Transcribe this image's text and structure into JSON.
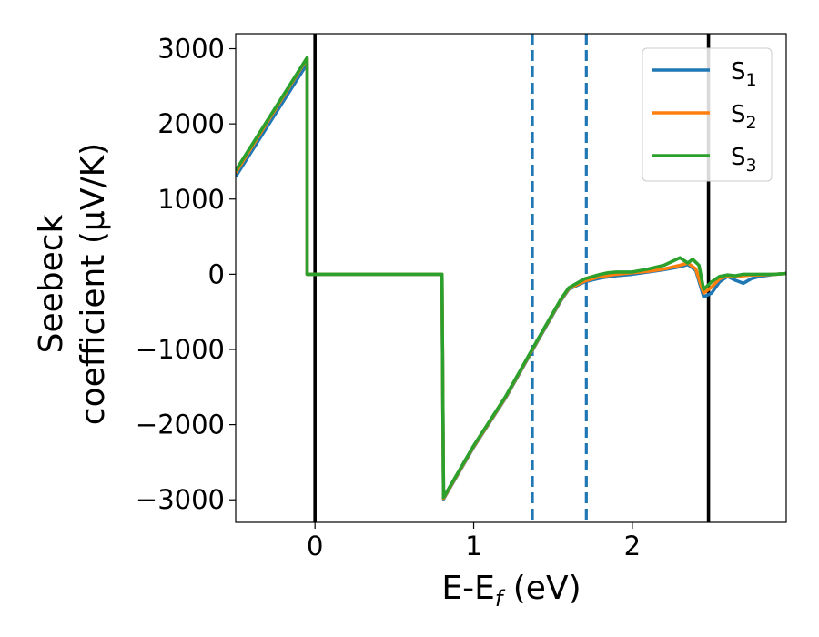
{
  "chart_data": {
    "type": "line",
    "title": "",
    "xlabel": "E-E",
    "xlabel_sub": "f",
    "xlabel_unit": " (eV)",
    "ylabel_line1": "Seebeck",
    "ylabel_line2": "coefficient  (μV/K)",
    "xlim": [
      -0.5,
      2.97
    ],
    "ylim": [
      -3300,
      3200
    ],
    "xticks": [
      0,
      1,
      2
    ],
    "xtick_labels": [
      "0",
      "1",
      "2"
    ],
    "yticks": [
      -3000,
      -2000,
      -1000,
      0,
      1000,
      2000,
      3000
    ],
    "ytick_labels": [
      "−3000",
      "−2000",
      "−1000",
      "0",
      "1000",
      "2000",
      "3000"
    ],
    "grid": false,
    "legend_position": "top-right",
    "vertical_lines": [
      {
        "x": 0.0,
        "style": "solid",
        "color": "#000000"
      },
      {
        "x": 1.37,
        "style": "dashed",
        "color": "#1f77b4"
      },
      {
        "x": 1.71,
        "style": "dashed",
        "color": "#1f77b4"
      },
      {
        "x": 2.48,
        "style": "solid",
        "color": "#000000"
      }
    ],
    "series": [
      {
        "name": "S",
        "sub": "1",
        "color": "#1f77b4",
        "x": [
          -0.5,
          -0.05,
          -0.05,
          0.8,
          0.81,
          1.0,
          1.2,
          1.4,
          1.55,
          1.6,
          1.7,
          1.8,
          1.9,
          2.0,
          2.1,
          2.2,
          2.3,
          2.35,
          2.4,
          2.45,
          2.5,
          2.55,
          2.6,
          2.65,
          2.7,
          2.75,
          2.8,
          2.9,
          2.97
        ],
        "y": [
          1300,
          2800,
          0,
          0,
          -2990,
          -2300,
          -1650,
          -900,
          -350,
          -200,
          -100,
          -50,
          -20,
          0,
          30,
          60,
          100,
          130,
          50,
          -300,
          -250,
          -100,
          -30,
          -80,
          -120,
          -60,
          -30,
          0,
          10
        ]
      },
      {
        "name": "S",
        "sub": "2",
        "color": "#ff7f0e",
        "x": [
          -0.5,
          -0.05,
          -0.05,
          0.8,
          0.81,
          1.0,
          1.2,
          1.4,
          1.55,
          1.6,
          1.7,
          1.8,
          1.9,
          2.0,
          2.1,
          2.2,
          2.3,
          2.35,
          2.4,
          2.45,
          2.5,
          2.55,
          2.6,
          2.65,
          2.7,
          2.75,
          2.8,
          2.9,
          2.97
        ],
        "y": [
          1350,
          2870,
          0,
          0,
          -2980,
          -2290,
          -1640,
          -890,
          -340,
          -190,
          -90,
          -30,
          0,
          20,
          40,
          70,
          120,
          150,
          70,
          -250,
          -170,
          -60,
          -20,
          -30,
          -20,
          -10,
          -10,
          0,
          10
        ]
      },
      {
        "name": "S",
        "sub": "3",
        "color": "#2ca02c",
        "x": [
          -0.5,
          -0.05,
          -0.05,
          0.8,
          0.81,
          1.0,
          1.2,
          1.4,
          1.55,
          1.6,
          1.7,
          1.8,
          1.85,
          1.9,
          2.0,
          2.1,
          2.2,
          2.3,
          2.35,
          2.38,
          2.42,
          2.45,
          2.5,
          2.55,
          2.6,
          2.65,
          2.7,
          2.8,
          2.9,
          2.97
        ],
        "y": [
          1380,
          2880,
          0,
          0,
          -2970,
          -2280,
          -1630,
          -880,
          -330,
          -180,
          -60,
          0,
          20,
          30,
          30,
          70,
          120,
          220,
          150,
          200,
          120,
          -200,
          -100,
          -30,
          -10,
          -20,
          0,
          0,
          0,
          10
        ]
      }
    ]
  }
}
